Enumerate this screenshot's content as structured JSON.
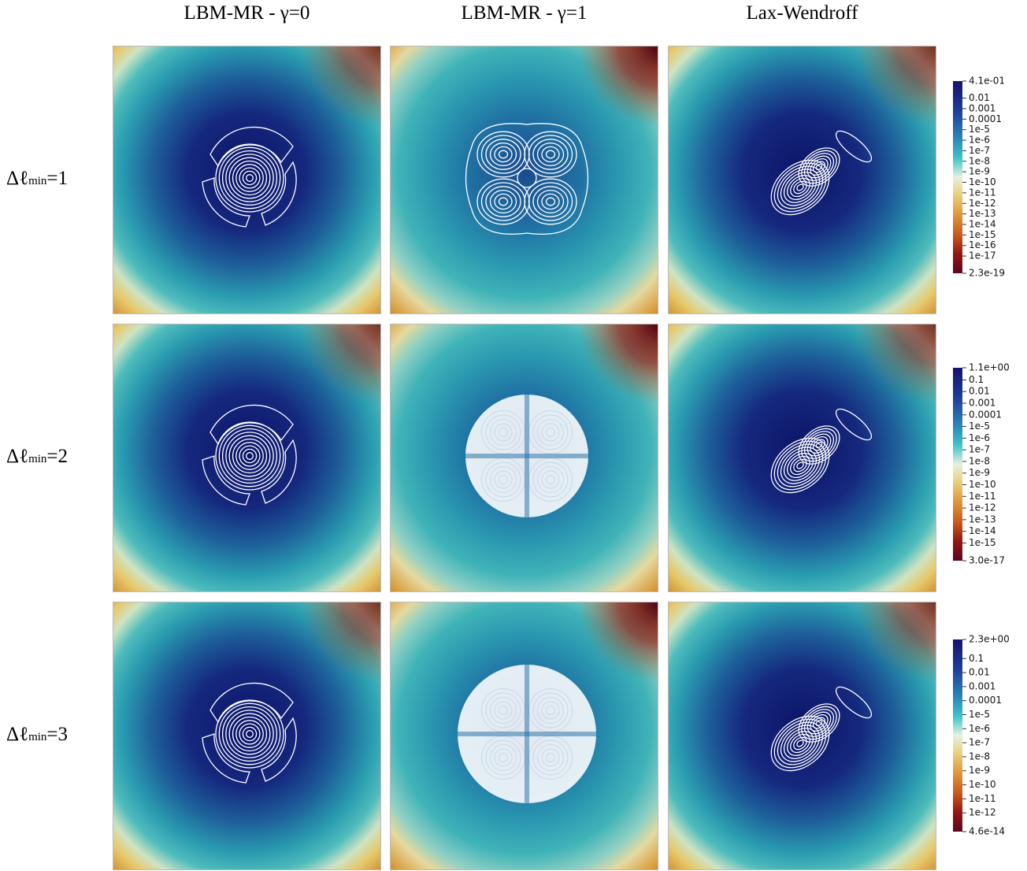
{
  "columns": [
    "LBM-MR - γ=0",
    "LBM-MR - γ=1",
    "Lax-Wendroff"
  ],
  "rows": [
    {
      "symbol": "Δℓ",
      "sub": "min",
      "rest": "=1"
    },
    {
      "symbol": "Δℓ",
      "sub": "min",
      "rest": "=2"
    },
    {
      "symbol": "Δℓ",
      "sub": "min",
      "rest": "=3"
    }
  ],
  "colorbars": [
    {
      "ticks": [
        "4.1e-01",
        "0.01",
        "0.001",
        "0.0001",
        "1e-5",
        "1e-6",
        "1e-7",
        "1e-8",
        "1e-9",
        "1e-10",
        "1e-11",
        "1e-12",
        "1e-13",
        "1e-14",
        "1e-15",
        "1e-16",
        "1e-17",
        "2.3e-19"
      ]
    },
    {
      "ticks": [
        "1.1e+00",
        "0.1",
        "0.01",
        "0.001",
        "0.0001",
        "1e-5",
        "1e-6",
        "1e-7",
        "1e-8",
        "1e-9",
        "1e-10",
        "1e-11",
        "1e-12",
        "1e-13",
        "1e-14",
        "1e-15",
        "3.0e-17"
      ]
    },
    {
      "ticks": [
        "2.3e+00",
        "0.1",
        "0.01",
        "0.001",
        "0.0001",
        "1e-5",
        "1e-6",
        "1e-7",
        "1e-8",
        "1e-9",
        "1e-10",
        "1e-11",
        "1e-12",
        "4.6e-14"
      ]
    }
  ]
}
